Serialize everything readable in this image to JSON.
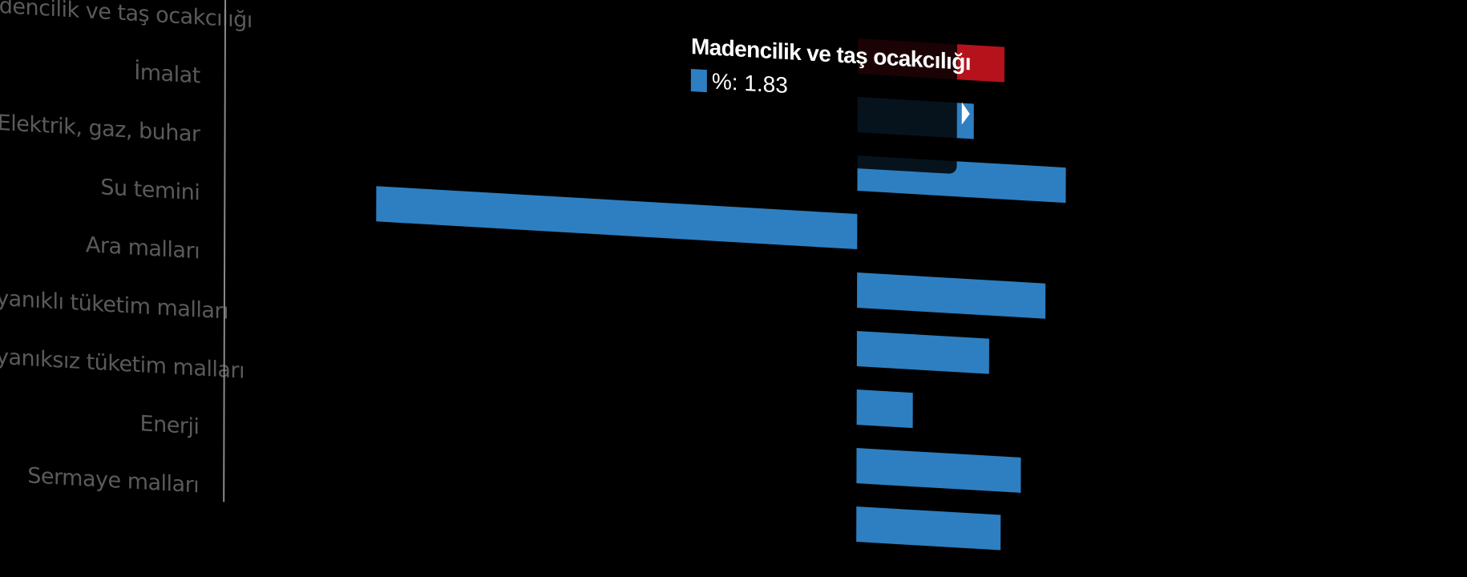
{
  "chart_data": {
    "type": "bar",
    "orientation": "horizontal",
    "categories": [
      "Madencilik ve taş ocakcılığı",
      "İmalat",
      "Elektrik, gaz, buhar",
      "Su temini",
      "Ara malları",
      "Dayanıklı tüketim malları",
      "Dayanıksız tüketim malları",
      "Enerji",
      "Sermaye malları"
    ],
    "series": [
      {
        "values": [
          1.83,
          1.45,
          2.6,
          -6.0,
          2.35,
          1.65,
          0.7,
          2.05,
          1.8
        ],
        "colors": [
          "#b5121b",
          "#2d7fc1",
          "#2d7fc1",
          "#2d7fc1",
          "#2d7fc1",
          "#2d7fc1",
          "#2d7fc1",
          "#2d7fc1",
          "#2d7fc1"
        ]
      }
    ],
    "highlight_color": "#b5121b",
    "bar_color": "#2d7fc1",
    "tooltip": {
      "title": "Madencilik ve taş ocakcılığı",
      "text": "%: 1.83"
    }
  }
}
